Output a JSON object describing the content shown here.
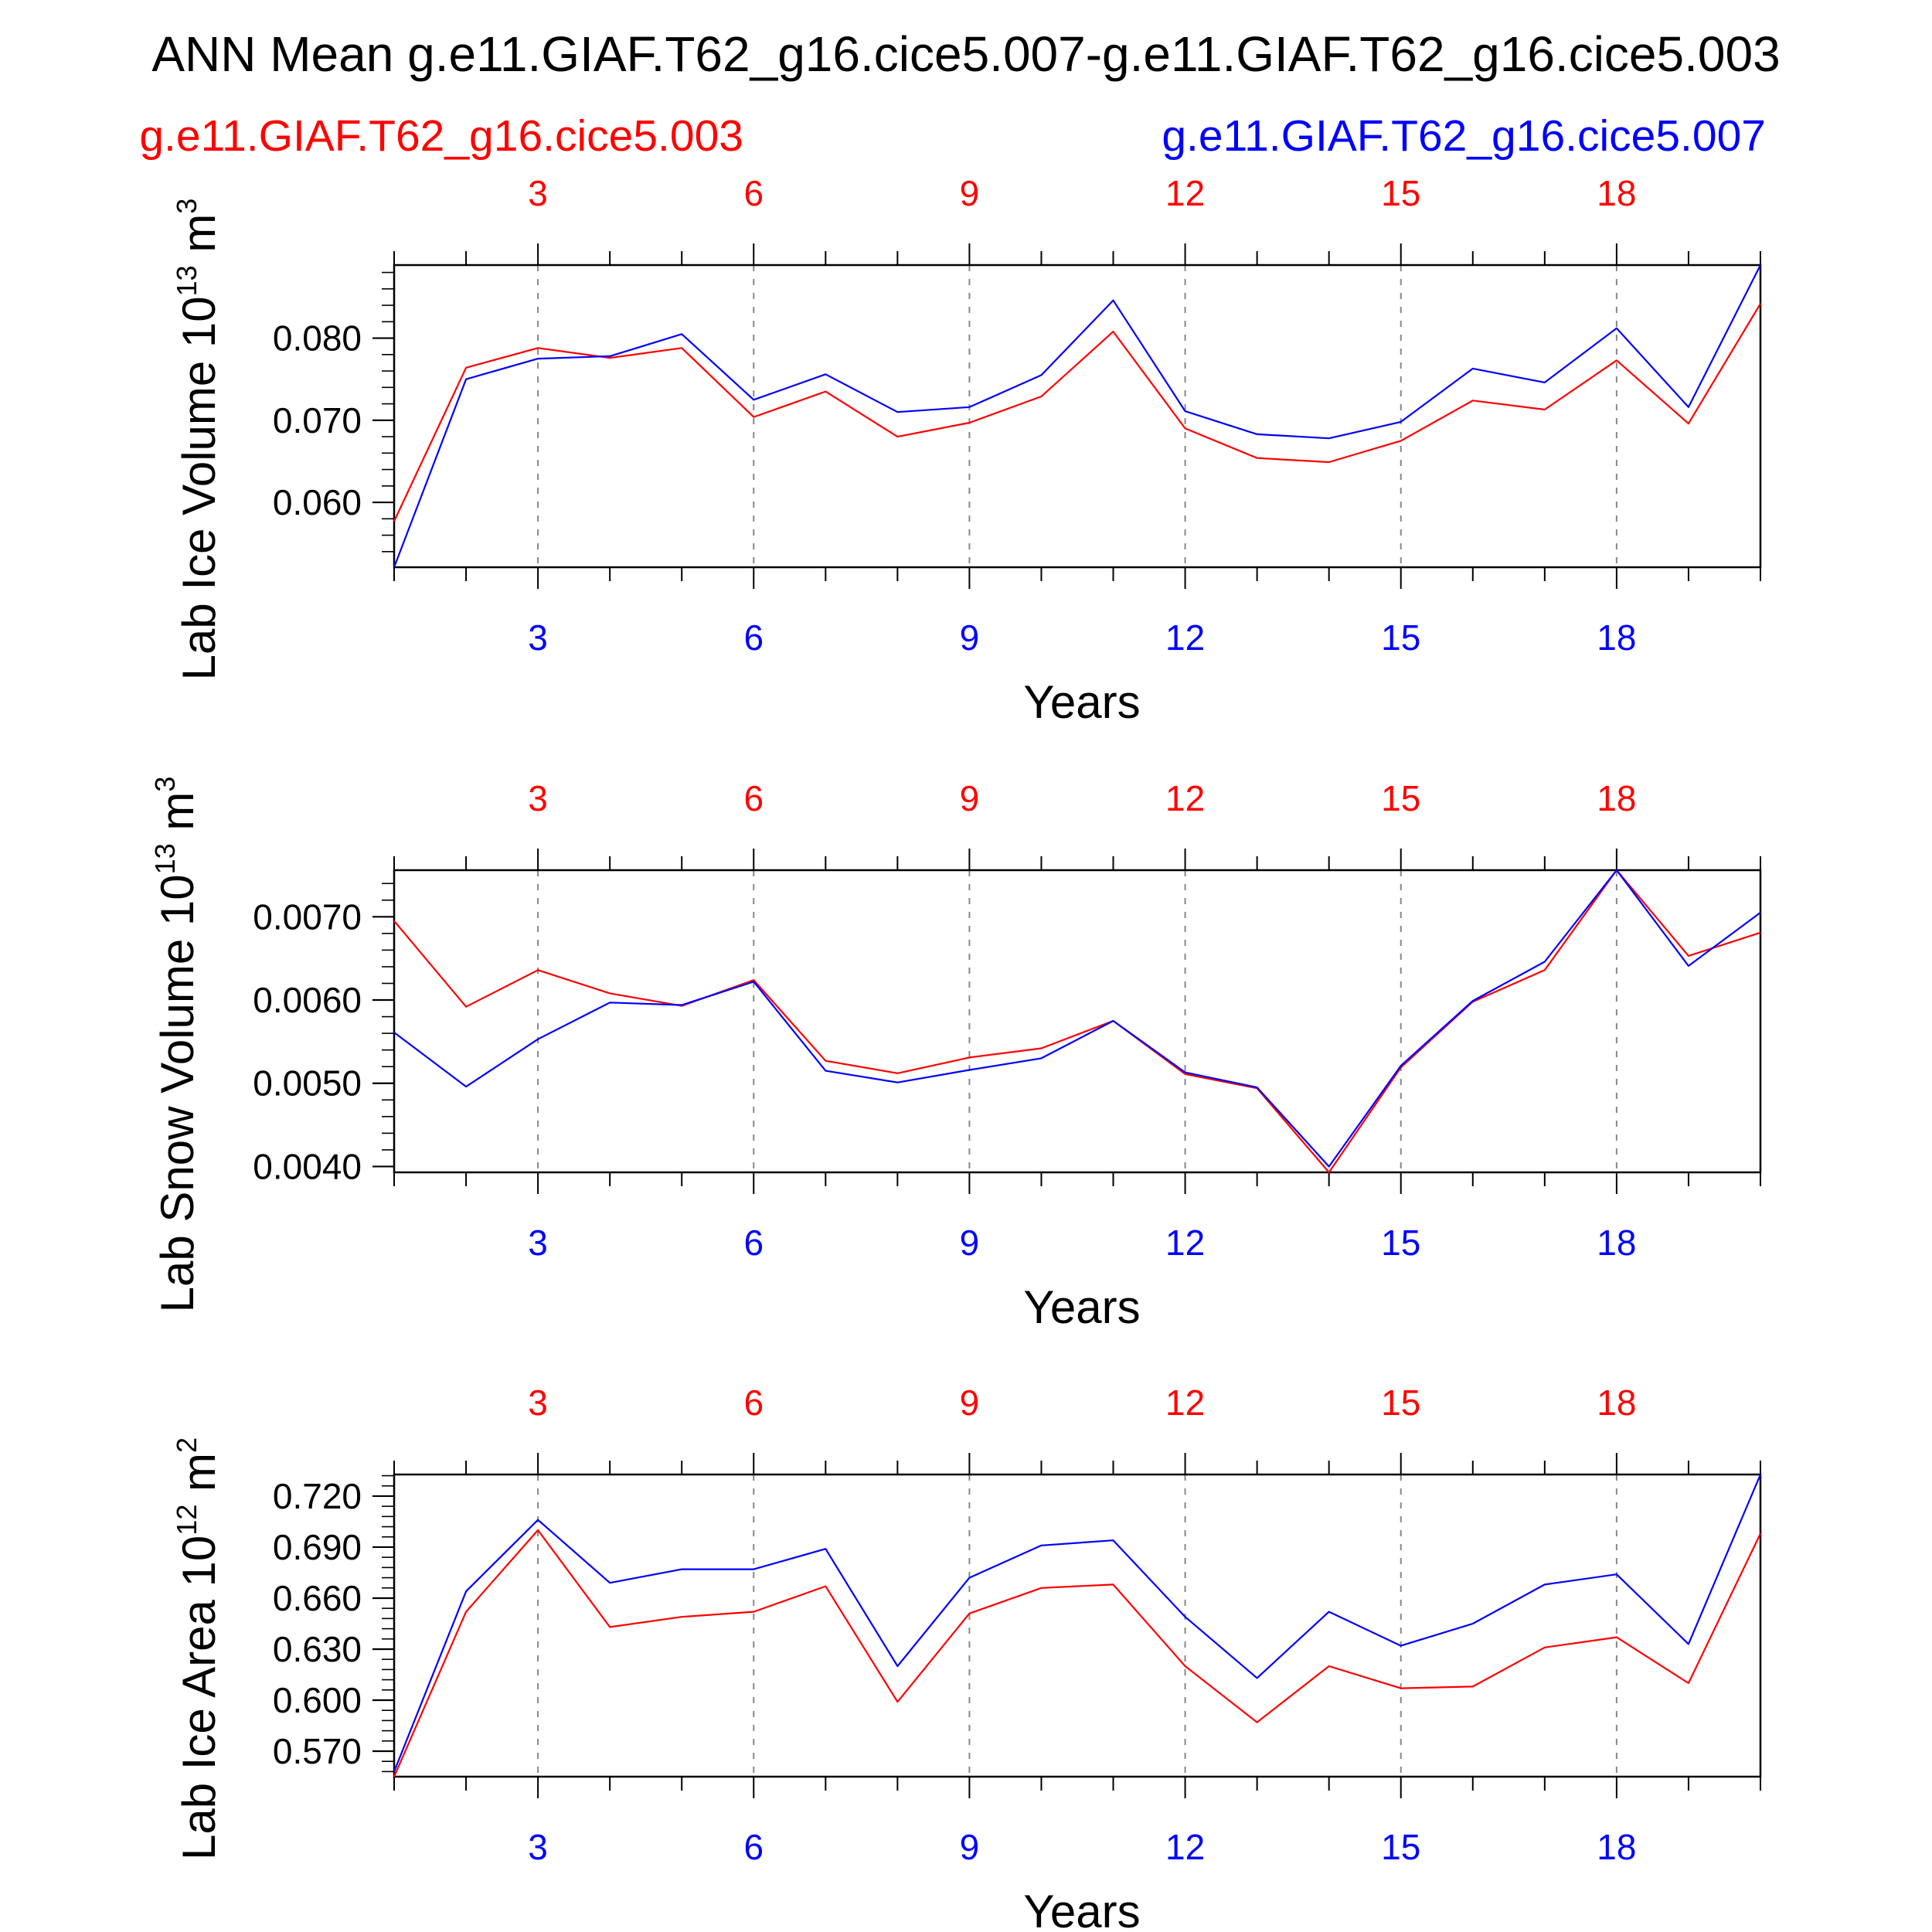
{
  "title": "ANN Mean g.e11.GIAF.T62_g16.cice5.007-g.e11.GIAF.T62_g16.cice5.003",
  "legend": {
    "left": "g.e11.GIAF.T62_g16.cice5.003",
    "right": "g.e11.GIAF.T62_g16.cice5.007"
  },
  "colors": {
    "case_003": "#ff0000",
    "case_007": "#0000ff",
    "axis": "#000000",
    "grid": "#888888"
  },
  "chart_data": [
    {
      "type": "line",
      "ylabel": "Lab Ice Volume 10",
      "ylabel_unit": "13",
      "ylabel_suffix": " m",
      "ylabel_power": "3",
      "xlabel": "Years",
      "x": [
        1,
        2,
        3,
        4,
        5,
        6,
        7,
        8,
        9,
        10,
        11,
        12,
        13,
        14,
        15,
        16,
        17,
        18,
        19,
        20
      ],
      "xticks": [
        3,
        6,
        9,
        12,
        15,
        18
      ],
      "xlim": [
        1,
        20
      ],
      "ylim": [
        0.0521,
        0.0889
      ],
      "yticks": [
        0.06,
        0.07,
        0.08
      ],
      "ytick_labels": [
        "0.060",
        "0.070",
        "0.080"
      ],
      "minor_step": 0.002,
      "series": [
        {
          "name": "g.e11.GIAF.T62_g16.cice5.003",
          "color": "#ff0000",
          "values": [
            0.0577,
            0.0764,
            0.0788,
            0.0776,
            0.0788,
            0.0704,
            0.0735,
            0.068,
            0.0697,
            0.0729,
            0.0808,
            0.069,
            0.0654,
            0.0649,
            0.0675,
            0.0724,
            0.0713,
            0.0773,
            0.0696,
            0.0842
          ]
        },
        {
          "name": "g.e11.GIAF.T62_g16.cice5.007",
          "color": "#0000ff",
          "values": [
            0.0521,
            0.075,
            0.0775,
            0.0778,
            0.0805,
            0.0725,
            0.0756,
            0.071,
            0.0716,
            0.0755,
            0.0846,
            0.0711,
            0.0683,
            0.0678,
            0.0698,
            0.0763,
            0.0746,
            0.0812,
            0.0716,
            0.0889
          ]
        }
      ]
    },
    {
      "type": "line",
      "ylabel": "Lab Snow Volume 10",
      "ylabel_unit": "13",
      "ylabel_suffix": " m",
      "ylabel_power": "3",
      "xlabel": "Years",
      "x": [
        1,
        2,
        3,
        4,
        5,
        6,
        7,
        8,
        9,
        10,
        11,
        12,
        13,
        14,
        15,
        16,
        17,
        18,
        19,
        20
      ],
      "xticks": [
        3,
        6,
        9,
        12,
        15,
        18
      ],
      "xlim": [
        1,
        20
      ],
      "ylim": [
        0.00393,
        0.00756
      ],
      "yticks": [
        0.004,
        0.005,
        0.006,
        0.007
      ],
      "ytick_labels": [
        "0.0040",
        "0.0050",
        "0.0060",
        "0.0070"
      ],
      "minor_step": 0.0002,
      "series": [
        {
          "name": "g.e11.GIAF.T62_g16.cice5.003",
          "color": "#ff0000",
          "values": [
            0.00695,
            0.00592,
            0.00636,
            0.00608,
            0.00593,
            0.00624,
            0.00527,
            0.00512,
            0.00531,
            0.00542,
            0.00575,
            0.00511,
            0.00494,
            0.00393,
            0.00519,
            0.00598,
            0.00636,
            0.00756,
            0.00653,
            0.00681
          ]
        },
        {
          "name": "g.e11.GIAF.T62_g16.cice5.007",
          "color": "#0000ff",
          "values": [
            0.00561,
            0.00496,
            0.00553,
            0.00597,
            0.00594,
            0.00622,
            0.00515,
            0.00501,
            0.00516,
            0.0053,
            0.00575,
            0.00513,
            0.00495,
            0.004,
            0.00521,
            0.00599,
            0.00646,
            0.00756,
            0.00641,
            0.00705
          ]
        }
      ]
    },
    {
      "type": "line",
      "ylabel": "Lab Ice Area 10",
      "ylabel_unit": "12",
      "ylabel_suffix": " m",
      "ylabel_power": "2",
      "xlabel": "Years",
      "x": [
        1,
        2,
        3,
        4,
        5,
        6,
        7,
        8,
        9,
        10,
        11,
        12,
        13,
        14,
        15,
        16,
        17,
        18,
        19,
        20
      ],
      "xticks": [
        3,
        6,
        9,
        12,
        15,
        18
      ],
      "xlim": [
        1,
        20
      ],
      "ylim": [
        0.555,
        0.7327
      ],
      "yticks": [
        0.57,
        0.6,
        0.63,
        0.66,
        0.69,
        0.72
      ],
      "ytick_labels": [
        "0.570",
        "0.600",
        "0.630",
        "0.660",
        "0.690",
        "0.720"
      ],
      "minor_step": 0.006,
      "series": [
        {
          "name": "g.e11.GIAF.T62_g16.cice5.003",
          "color": "#ff0000",
          "values": [
            0.555,
            0.652,
            0.7,
            0.643,
            0.649,
            0.652,
            0.667,
            0.599,
            0.651,
            0.666,
            0.668,
            0.62,
            0.587,
            0.62,
            0.607,
            0.608,
            0.631,
            0.637,
            0.61,
            0.698
          ]
        },
        {
          "name": "g.e11.GIAF.T62_g16.cice5.007",
          "color": "#0000ff",
          "values": [
            0.558,
            0.664,
            0.706,
            0.669,
            0.677,
            0.677,
            0.689,
            0.62,
            0.672,
            0.691,
            0.694,
            0.649,
            0.613,
            0.652,
            0.632,
            0.645,
            0.668,
            0.674,
            0.633,
            0.7327
          ]
        }
      ]
    }
  ]
}
